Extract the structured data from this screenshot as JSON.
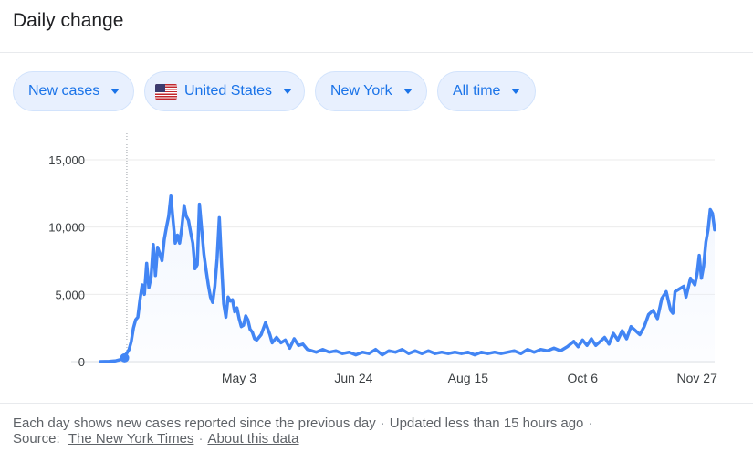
{
  "header": {
    "title": "Daily change"
  },
  "filters": {
    "metric": "New cases",
    "country": "United States",
    "region": "New York",
    "range": "All time"
  },
  "icons": {
    "country_flag": "us-flag-icon",
    "dropdown": "caret-down-icon"
  },
  "colors": {
    "line": "#4285f4",
    "area_fill": "#e8f0fe",
    "chip_text": "#1a73e8"
  },
  "footer": {
    "note": "Each day shows new cases reported since the previous day",
    "updated": "Updated less than 15 hours ago",
    "source_label": "Source:",
    "source_link": "The New York Times",
    "about_link": "About this data"
  },
  "chart_data": {
    "type": "area",
    "title": "",
    "xlabel": "",
    "ylabel": "",
    "x_ticks": [
      "May 3",
      "Jun 24",
      "Aug 15",
      "Oct 6",
      "Nov 27"
    ],
    "y_ticks": [
      "0",
      "5,000",
      "10,000",
      "15,000"
    ],
    "ylim": [
      0,
      15000
    ],
    "x_range": [
      "2020-03-01",
      "2020-12-05"
    ],
    "grid": true,
    "legend": "none",
    "series": [
      {
        "points": [
          [
            "2020-03-01",
            0
          ],
          [
            "2020-03-05",
            20
          ],
          [
            "2020-03-08",
            60
          ],
          [
            "2020-03-10",
            150
          ],
          [
            "2020-03-12",
            350
          ],
          [
            "2020-03-14",
            900
          ],
          [
            "2020-03-15",
            1500
          ],
          [
            "2020-03-16",
            2500
          ],
          [
            "2020-03-17",
            3100
          ],
          [
            "2020-03-18",
            3300
          ],
          [
            "2020-03-19",
            4600
          ],
          [
            "2020-03-20",
            5700
          ],
          [
            "2020-03-21",
            5000
          ],
          [
            "2020-03-22",
            7300
          ],
          [
            "2020-03-23",
            5500
          ],
          [
            "2020-03-24",
            6300
          ],
          [
            "2020-03-25",
            8700
          ],
          [
            "2020-03-26",
            6400
          ],
          [
            "2020-03-27",
            8500
          ],
          [
            "2020-03-28",
            8000
          ],
          [
            "2020-03-29",
            7500
          ],
          [
            "2020-03-30",
            9100
          ],
          [
            "2020-03-31",
            10000
          ],
          [
            "2020-04-01",
            10800
          ],
          [
            "2020-04-02",
            12300
          ],
          [
            "2020-04-03",
            10500
          ],
          [
            "2020-04-04",
            8800
          ],
          [
            "2020-04-05",
            9400
          ],
          [
            "2020-04-06",
            8800
          ],
          [
            "2020-04-07",
            10000
          ],
          [
            "2020-04-08",
            11600
          ],
          [
            "2020-04-09",
            10800
          ],
          [
            "2020-04-10",
            10500
          ],
          [
            "2020-04-11",
            9600
          ],
          [
            "2020-04-12",
            8800
          ],
          [
            "2020-04-13",
            6900
          ],
          [
            "2020-04-14",
            7200
          ],
          [
            "2020-04-15",
            11700
          ],
          [
            "2020-04-16",
            9800
          ],
          [
            "2020-04-17",
            8000
          ],
          [
            "2020-04-18",
            6800
          ],
          [
            "2020-04-19",
            5700
          ],
          [
            "2020-04-20",
            4800
          ],
          [
            "2020-04-21",
            4400
          ],
          [
            "2020-04-22",
            5600
          ],
          [
            "2020-04-23",
            7600
          ],
          [
            "2020-04-24",
            10700
          ],
          [
            "2020-04-25",
            7300
          ],
          [
            "2020-04-26",
            4300
          ],
          [
            "2020-04-27",
            3300
          ],
          [
            "2020-04-28",
            4800
          ],
          [
            "2020-04-29",
            4500
          ],
          [
            "2020-04-30",
            4600
          ],
          [
            "2020-05-01",
            3700
          ],
          [
            "2020-05-02",
            4000
          ],
          [
            "2020-05-03",
            3200
          ],
          [
            "2020-05-04",
            2600
          ],
          [
            "2020-05-05",
            2700
          ],
          [
            "2020-05-06",
            3400
          ],
          [
            "2020-05-07",
            3100
          ],
          [
            "2020-05-08",
            2400
          ],
          [
            "2020-05-09",
            2200
          ],
          [
            "2020-05-10",
            1700
          ],
          [
            "2020-05-11",
            1600
          ],
          [
            "2020-05-13",
            2000
          ],
          [
            "2020-05-15",
            2900
          ],
          [
            "2020-05-17",
            2000
          ],
          [
            "2020-05-18",
            1400
          ],
          [
            "2020-05-20",
            1800
          ],
          [
            "2020-05-22",
            1400
          ],
          [
            "2020-05-24",
            1600
          ],
          [
            "2020-05-26",
            1000
          ],
          [
            "2020-05-28",
            1700
          ],
          [
            "2020-05-30",
            1200
          ],
          [
            "2020-06-01",
            1300
          ],
          [
            "2020-06-03",
            900
          ],
          [
            "2020-06-05",
            800
          ],
          [
            "2020-06-07",
            700
          ],
          [
            "2020-06-10",
            900
          ],
          [
            "2020-06-13",
            700
          ],
          [
            "2020-06-16",
            800
          ],
          [
            "2020-06-19",
            600
          ],
          [
            "2020-06-22",
            700
          ],
          [
            "2020-06-25",
            500
          ],
          [
            "2020-06-28",
            700
          ],
          [
            "2020-07-01",
            600
          ],
          [
            "2020-07-04",
            900
          ],
          [
            "2020-07-07",
            500
          ],
          [
            "2020-07-10",
            800
          ],
          [
            "2020-07-13",
            700
          ],
          [
            "2020-07-16",
            900
          ],
          [
            "2020-07-19",
            600
          ],
          [
            "2020-07-22",
            800
          ],
          [
            "2020-07-25",
            600
          ],
          [
            "2020-07-28",
            800
          ],
          [
            "2020-07-31",
            600
          ],
          [
            "2020-08-03",
            700
          ],
          [
            "2020-08-06",
            600
          ],
          [
            "2020-08-09",
            700
          ],
          [
            "2020-08-12",
            600
          ],
          [
            "2020-08-15",
            700
          ],
          [
            "2020-08-18",
            500
          ],
          [
            "2020-08-21",
            700
          ],
          [
            "2020-08-24",
            600
          ],
          [
            "2020-08-27",
            700
          ],
          [
            "2020-08-30",
            600
          ],
          [
            "2020-09-02",
            700
          ],
          [
            "2020-09-05",
            800
          ],
          [
            "2020-09-08",
            600
          ],
          [
            "2020-09-11",
            900
          ],
          [
            "2020-09-14",
            700
          ],
          [
            "2020-09-17",
            900
          ],
          [
            "2020-09-20",
            800
          ],
          [
            "2020-09-23",
            1000
          ],
          [
            "2020-09-26",
            800
          ],
          [
            "2020-09-29",
            1100
          ],
          [
            "2020-10-02",
            1500
          ],
          [
            "2020-10-04",
            1100
          ],
          [
            "2020-10-06",
            1600
          ],
          [
            "2020-10-08",
            1200
          ],
          [
            "2020-10-10",
            1700
          ],
          [
            "2020-10-12",
            1200
          ],
          [
            "2020-10-14",
            1500
          ],
          [
            "2020-10-16",
            1800
          ],
          [
            "2020-10-18",
            1300
          ],
          [
            "2020-10-20",
            2100
          ],
          [
            "2020-10-22",
            1600
          ],
          [
            "2020-10-24",
            2300
          ],
          [
            "2020-10-26",
            1700
          ],
          [
            "2020-10-28",
            2600
          ],
          [
            "2020-10-30",
            2300
          ],
          [
            "2020-11-01",
            2000
          ],
          [
            "2020-11-03",
            2600
          ],
          [
            "2020-11-05",
            3500
          ],
          [
            "2020-11-07",
            3800
          ],
          [
            "2020-11-09",
            3200
          ],
          [
            "2020-11-11",
            4700
          ],
          [
            "2020-11-13",
            5200
          ],
          [
            "2020-11-15",
            3800
          ],
          [
            "2020-11-16",
            3600
          ],
          [
            "2020-11-17",
            5200
          ],
          [
            "2020-11-19",
            5400
          ],
          [
            "2020-11-21",
            5600
          ],
          [
            "2020-11-22",
            4800
          ],
          [
            "2020-11-24",
            6200
          ],
          [
            "2020-11-26",
            5700
          ],
          [
            "2020-11-27",
            6500
          ],
          [
            "2020-11-28",
            7900
          ],
          [
            "2020-11-29",
            6200
          ],
          [
            "2020-11-30",
            7100
          ],
          [
            "2020-12-01",
            8900
          ],
          [
            "2020-12-02",
            9800
          ],
          [
            "2020-12-03",
            11300
          ],
          [
            "2020-12-04",
            11000
          ],
          [
            "2020-12-05",
            9800
          ]
        ]
      }
    ]
  }
}
